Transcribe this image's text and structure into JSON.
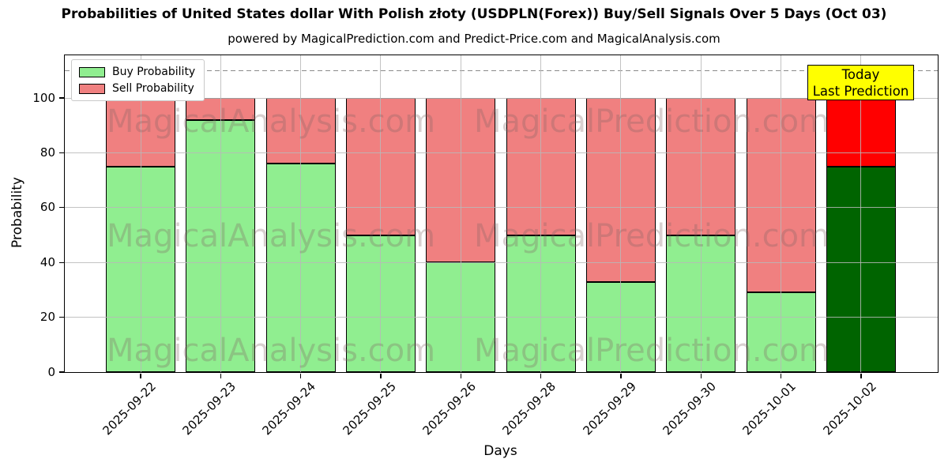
{
  "subtitle": "powered by MagicalPrediction.com and Predict-Price.com and MagicalAnalysis.com",
  "annotation": {
    "line1": "Today",
    "line2": "Last Prediction",
    "bg_color": "#FFFF00"
  },
  "watermarks": {
    "left_text": "MagicalAnalysis.com",
    "right_text": "MagicalPrediction.com"
  },
  "chart_data": {
    "type": "bar",
    "stacked": true,
    "title": "Probabilities of United States dollar With Polish złoty (USDPLN(Forex)) Buy/Sell Signals Over 5 Days (Oct 03)",
    "xlabel": "Days",
    "ylabel": "Probability",
    "ylim": [
      0,
      115.6
    ],
    "yticks": [
      0,
      20,
      40,
      60,
      80,
      100
    ],
    "threshold_dashed_y": 110,
    "grid": true,
    "legend_position": "upper-left",
    "categories": [
      "2025-09-22",
      "2025-09-23",
      "2025-09-24",
      "2025-09-25",
      "2025-09-26",
      "2025-09-28",
      "2025-09-29",
      "2025-09-30",
      "2025-10-01",
      "2025-10-02"
    ],
    "series": [
      {
        "name": "Buy Probability",
        "color": "#90EE90",
        "values": [
          75,
          92,
          76,
          50,
          40,
          50,
          33,
          50,
          29,
          75
        ]
      },
      {
        "name": "Sell Probability",
        "color": "#F08080",
        "values": [
          25,
          8,
          24,
          50,
          60,
          50,
          67,
          50,
          71,
          25
        ]
      }
    ],
    "highlight_last_bar": {
      "buy_color": "#006400",
      "sell_color": "#FF0000"
    }
  }
}
